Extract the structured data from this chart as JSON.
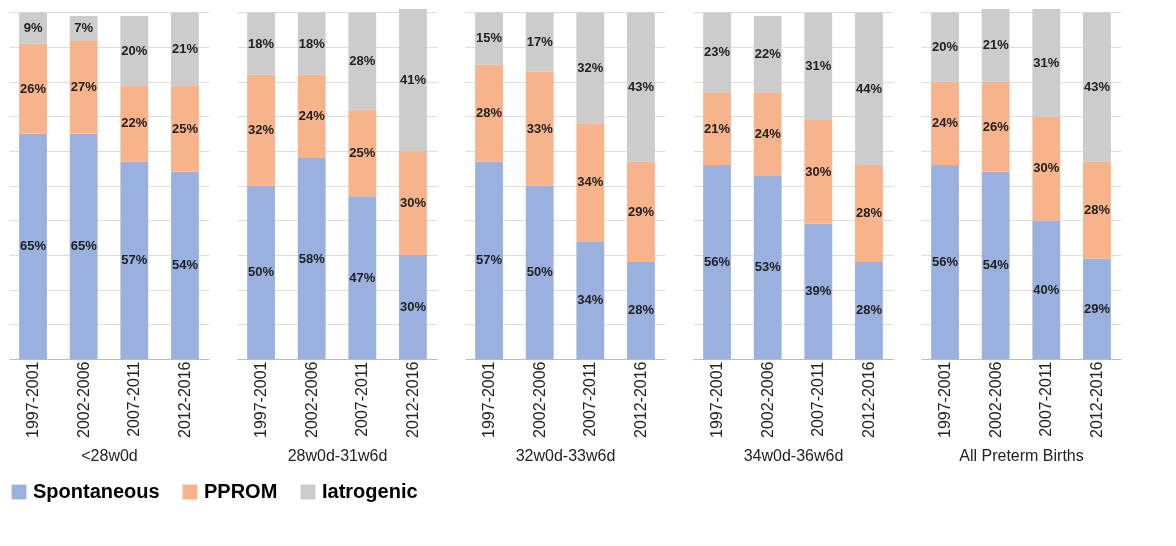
{
  "chart_data": [
    {
      "type": "bar",
      "stacked": true,
      "categories": [
        "1997-2001",
        "2002-2006",
        "2007-2011",
        "2012-2016"
      ],
      "xlabel": "<28w0d",
      "ylim": [
        0,
        101
      ],
      "grid": "y",
      "tick_labels": "x",
      "legend": "bottom",
      "series": [
        {
          "name": "Spontaneous",
          "color": "#9ab1e0",
          "values": [
            65,
            65,
            57,
            54
          ],
          "value_labels": [
            "65%",
            "65%",
            "57%",
            "54%"
          ]
        },
        {
          "name": "PPROM",
          "color": "#f7b48c",
          "values": [
            26,
            27,
            22,
            25
          ],
          "value_labels": [
            "26%",
            "27%",
            "22%",
            "25%"
          ]
        },
        {
          "name": "Iatrogenic",
          "color": "#cccccc",
          "values": [
            9,
            7,
            20,
            21
          ],
          "value_labels": [
            "9%",
            "7%",
            "20%",
            "21%"
          ]
        }
      ]
    },
    {
      "type": "bar",
      "stacked": true,
      "categories": [
        "1997-2001",
        "2002-2006",
        "2007-2011",
        "2012-2016"
      ],
      "xlabel": "28w0d-31w6d",
      "ylim": [
        0,
        101
      ],
      "grid": "y",
      "tick_labels": "x",
      "legend": "bottom",
      "series": [
        {
          "name": "Spontaneous",
          "color": "#9ab1e0",
          "values": [
            50,
            58,
            47,
            30
          ],
          "value_labels": [
            "50%",
            "58%",
            "47%",
            "30%"
          ]
        },
        {
          "name": "PPROM",
          "color": "#f7b48c",
          "values": [
            32,
            24,
            25,
            30
          ],
          "value_labels": [
            "32%",
            "24%",
            "25%",
            "30%"
          ]
        },
        {
          "name": "Iatrogenic",
          "color": "#cccccc",
          "values": [
            18,
            18,
            28,
            41
          ],
          "value_labels": [
            "18%",
            "18%",
            "28%",
            "41%"
          ]
        }
      ]
    },
    {
      "type": "bar",
      "stacked": true,
      "categories": [
        "1997-2001",
        "2002-2006",
        "2007-2011",
        "2012-2016"
      ],
      "xlabel": "32w0d-33w6d",
      "ylim": [
        0,
        101
      ],
      "grid": "y",
      "tick_labels": "x",
      "legend": "bottom",
      "series": [
        {
          "name": "Spontaneous",
          "color": "#9ab1e0",
          "values": [
            57,
            50,
            34,
            28
          ],
          "value_labels": [
            "57%",
            "50%",
            "34%",
            "28%"
          ]
        },
        {
          "name": "PPROM",
          "color": "#f7b48c",
          "values": [
            28,
            33,
            34,
            29
          ],
          "value_labels": [
            "28%",
            "33%",
            "34%",
            "29%"
          ]
        },
        {
          "name": "Iatrogenic",
          "color": "#cccccc",
          "values": [
            15,
            17,
            32,
            43
          ],
          "value_labels": [
            "15%",
            "17%",
            "32%",
            "43%"
          ]
        }
      ]
    },
    {
      "type": "bar",
      "stacked": true,
      "categories": [
        "1997-2001",
        "2002-2006",
        "2007-2011",
        "2012-2016"
      ],
      "xlabel": "34w0d-36w6d",
      "ylim": [
        0,
        101
      ],
      "grid": "y",
      "tick_labels": "x",
      "legend": "bottom",
      "series": [
        {
          "name": "Spontaneous",
          "color": "#9ab1e0",
          "values": [
            56,
            53,
            39,
            28
          ],
          "value_labels": [
            "56%",
            "53%",
            "39%",
            "28%"
          ]
        },
        {
          "name": "PPROM",
          "color": "#f7b48c",
          "values": [
            21,
            24,
            30,
            28
          ],
          "value_labels": [
            "21%",
            "24%",
            "30%",
            "28%"
          ]
        },
        {
          "name": "Iatrogenic",
          "color": "#cccccc",
          "values": [
            23,
            22,
            31,
            44
          ],
          "value_labels": [
            "23%",
            "22%",
            "31%",
            "44%"
          ]
        }
      ]
    },
    {
      "type": "bar",
      "stacked": true,
      "categories": [
        "1997-2001",
        "2002-2006",
        "2007-2011",
        "2012-2016"
      ],
      "xlabel": "All Preterm Births",
      "ylim": [
        0,
        101
      ],
      "grid": "y",
      "tick_labels": "x",
      "legend": "bottom",
      "series": [
        {
          "name": "Spontaneous",
          "color": "#9ab1e0",
          "values": [
            56,
            54,
            40,
            29
          ],
          "value_labels": [
            "56%",
            "54%",
            "40%",
            "29%"
          ]
        },
        {
          "name": "PPROM",
          "color": "#f7b48c",
          "values": [
            24,
            26,
            30,
            28
          ],
          "value_labels": [
            "24%",
            "26%",
            "30%",
            "28%"
          ]
        },
        {
          "name": "Iatrogenic",
          "color": "#cccccc",
          "values": [
            20,
            21,
            31,
            43
          ],
          "value_labels": [
            "20%",
            "21%",
            "31%",
            "43%"
          ]
        }
      ]
    }
  ]
}
